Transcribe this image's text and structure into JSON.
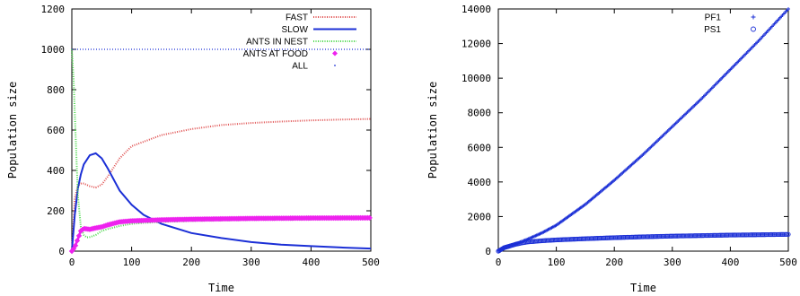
{
  "chart_data": [
    {
      "type": "line",
      "xlabel": "Time",
      "ylabel": "Population size",
      "xlim": [
        0,
        500
      ],
      "ylim": [
        0,
        1200
      ],
      "x_ticks": [
        0,
        100,
        200,
        300,
        400,
        500
      ],
      "y_ticks": [
        0,
        200,
        400,
        600,
        800,
        1000,
        1200
      ],
      "grid": false,
      "legend_position": "top-right",
      "series": [
        {
          "name": "FAST",
          "color": "#e05050",
          "style": "dotted-dense",
          "x": [
            0,
            5,
            10,
            15,
            20,
            30,
            40,
            50,
            60,
            80,
            100,
            150,
            200,
            250,
            300,
            350,
            400,
            450,
            500
          ],
          "y": [
            0,
            260,
            325,
            335,
            335,
            322,
            315,
            330,
            370,
            460,
            520,
            575,
            605,
            625,
            635,
            642,
            648,
            652,
            655
          ]
        },
        {
          "name": "SLOW",
          "color": "#1b2fd6",
          "style": "solid",
          "x": [
            0,
            5,
            10,
            15,
            20,
            30,
            40,
            50,
            60,
            80,
            100,
            120,
            150,
            200,
            250,
            300,
            350,
            400,
            450,
            500
          ],
          "y": [
            0,
            180,
            310,
            380,
            430,
            475,
            485,
            460,
            410,
            300,
            230,
            180,
            135,
            90,
            65,
            45,
            32,
            25,
            18,
            13
          ]
        },
        {
          "name": "ANTS IN NEST",
          "color": "#4cd94c",
          "style": "dotted-dense",
          "x": [
            0,
            3,
            6,
            10,
            15,
            20,
            25,
            30,
            40,
            50,
            60,
            80,
            100,
            120,
            150,
            200,
            300,
            400,
            500
          ],
          "y": [
            1000,
            850,
            600,
            280,
            120,
            80,
            68,
            70,
            80,
            100,
            110,
            125,
            135,
            140,
            145,
            150,
            155,
            157,
            160
          ]
        },
        {
          "name": "ANTS AT FOOD",
          "color": "#ee22ee",
          "style": "thick",
          "x": [
            0,
            5,
            10,
            15,
            20,
            25,
            30,
            40,
            50,
            60,
            80,
            100,
            150,
            200,
            300,
            400,
            500
          ],
          "y": [
            0,
            20,
            60,
            100,
            112,
            110,
            108,
            115,
            120,
            130,
            145,
            150,
            155,
            158,
            162,
            164,
            165
          ]
        },
        {
          "name": "ALL",
          "color": "#1b2fd6",
          "style": "dotted",
          "x": [
            0,
            500
          ],
          "y": [
            1000,
            1000
          ]
        }
      ]
    },
    {
      "type": "scatter",
      "xlabel": "Time",
      "ylabel": "Population size",
      "xlim": [
        0,
        500
      ],
      "ylim": [
        0,
        14000
      ],
      "x_ticks": [
        0,
        100,
        200,
        300,
        400,
        500
      ],
      "y_ticks": [
        0,
        2000,
        4000,
        6000,
        8000,
        10000,
        12000,
        14000
      ],
      "grid": false,
      "legend_position": "top-right",
      "series": [
        {
          "name": "PF1",
          "color": "#1b2fd6",
          "marker": "plus",
          "x": [
            0,
            10,
            20,
            30,
            40,
            50,
            75,
            100,
            150,
            200,
            250,
            300,
            350,
            400,
            450,
            500
          ],
          "y": [
            0,
            200,
            320,
            420,
            550,
            680,
            1050,
            1500,
            2700,
            4100,
            5600,
            7200,
            8800,
            10500,
            12200,
            14000
          ]
        },
        {
          "name": "PS1",
          "color": "#1b2fd6",
          "marker": "circle",
          "x": [
            0,
            10,
            20,
            30,
            40,
            50,
            75,
            100,
            150,
            200,
            250,
            300,
            350,
            400,
            450,
            500
          ],
          "y": [
            0,
            200,
            300,
            400,
            470,
            530,
            600,
            650,
            720,
            780,
            830,
            870,
            900,
            930,
            950,
            970
          ]
        }
      ]
    }
  ]
}
